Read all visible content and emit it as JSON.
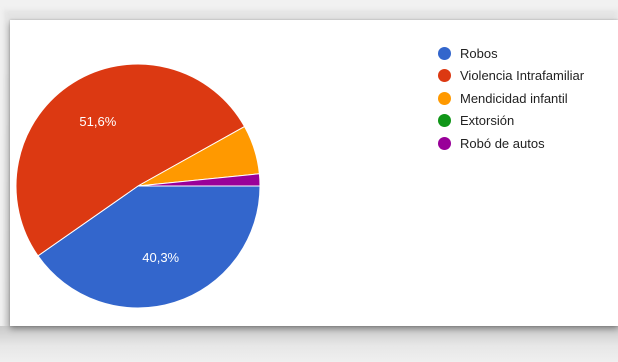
{
  "chart_data": {
    "type": "pie",
    "categories": [
      "Robos",
      "Violencia Intrafamiliar",
      "Mendicidad infantil",
      "Extorsión",
      "Robó de autos"
    ],
    "values": [
      40.3,
      51.6,
      6.5,
      0,
      1.6
    ],
    "colors": [
      "#3366cc",
      "#dc3912",
      "#ff9900",
      "#109618",
      "#990099"
    ],
    "data_labels": [
      "40,3%",
      "51,6%",
      "",
      "",
      ""
    ],
    "legend_position": "right",
    "title": ""
  }
}
